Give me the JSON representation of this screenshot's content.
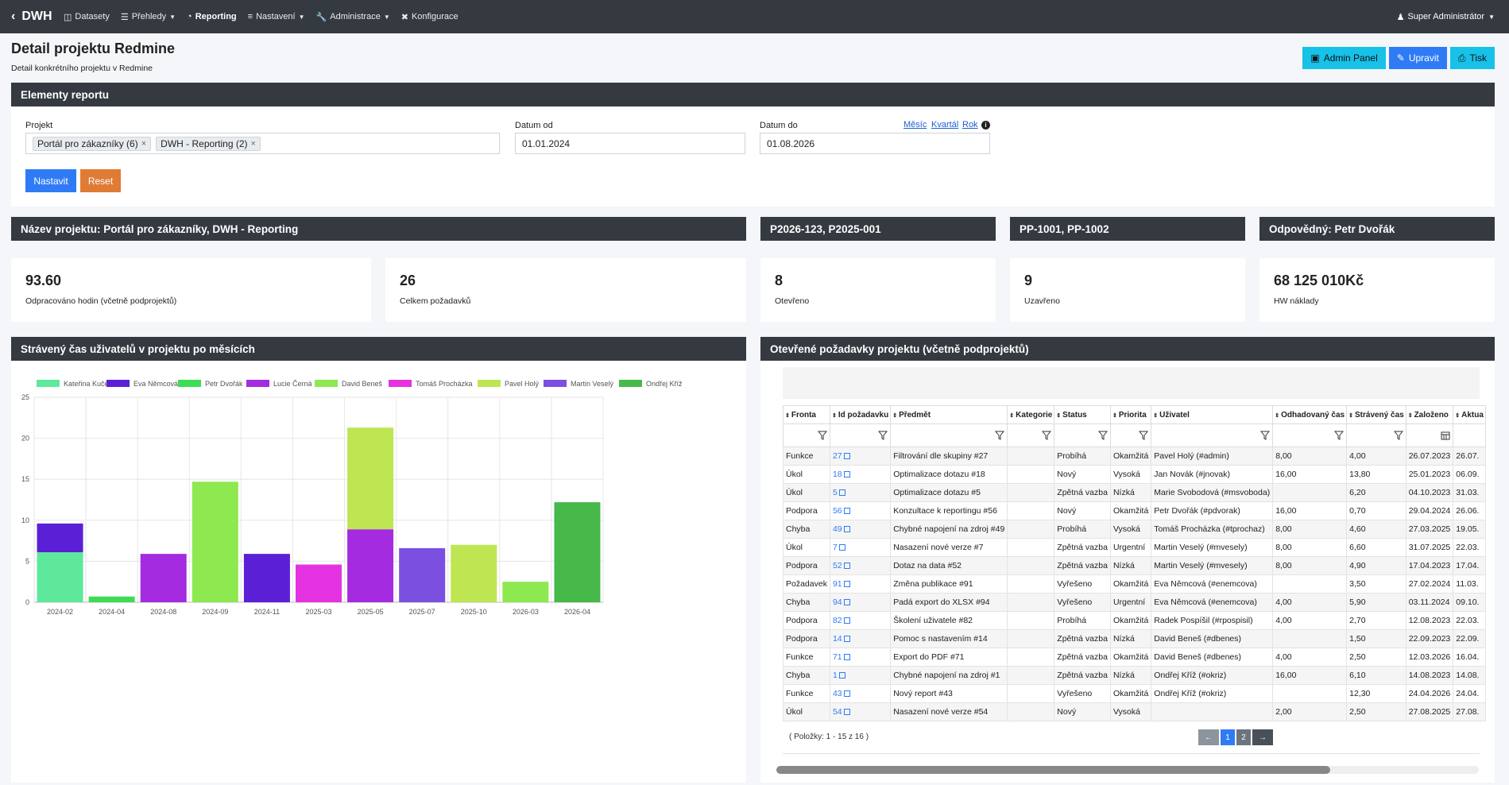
{
  "nav": {
    "brand": "DWH",
    "items": [
      {
        "label": "Datasety",
        "icon": "database-icon",
        "caret": false,
        "active": false
      },
      {
        "label": "Přehledy",
        "icon": "list-icon",
        "caret": true,
        "active": false
      },
      {
        "label": "Reporting",
        "icon": "pie-chart-icon",
        "caret": false,
        "active": true
      },
      {
        "label": "Nastavení",
        "icon": "sliders-icon",
        "caret": true,
        "active": false
      },
      {
        "label": "Administrace",
        "icon": "wrench-icon",
        "caret": true,
        "active": false
      },
      {
        "label": "Konfigurace",
        "icon": "tools-icon",
        "caret": false,
        "active": false
      }
    ],
    "user": "Super Administrátor"
  },
  "header": {
    "title": "Detail projektu Redmine",
    "subtitle": "Detail konkrétního projektu v Redmine",
    "buttons": {
      "admin": "Admin Panel",
      "edit": "Upravit",
      "print": "Tisk"
    }
  },
  "filters": {
    "section_title": "Elementy reportu",
    "project_label": "Projekt",
    "project_tags": [
      "Portál pro zákazníky (6)",
      "DWH - Reporting (2)"
    ],
    "date_from_label": "Datum od",
    "date_from": "01.01.2024",
    "date_to_label": "Datum do",
    "date_to": "01.08.2026",
    "quick_links": [
      "Měsíc",
      "Kvartál",
      "Rok"
    ],
    "set_button": "Nastavit",
    "reset_button": "Reset"
  },
  "info_bars": {
    "project_name": "Název projektu: Portál pro zákazníky, DWH - Reporting",
    "codes1": "P2026-123, P2025-001",
    "codes2": "PP-1001, PP-1002",
    "responsible": "Odpovědný: Petr Dvořák"
  },
  "stats": [
    {
      "value": "93.60",
      "label": "Odpracováno hodin (včetně podprojektů)"
    },
    {
      "value": "26",
      "label": "Celkem požadavků"
    },
    {
      "value": "8",
      "label": "Otevřeno"
    },
    {
      "value": "9",
      "label": "Uzavřeno"
    },
    {
      "value": "68 125 010Kč",
      "label": "HW náklady"
    }
  ],
  "chart_section_title": "Strávený čas uživatelů v projektu po měsících",
  "chart_data": {
    "type": "bar",
    "stacked": true,
    "categories": [
      "2024-02",
      "2024-04",
      "2024-08",
      "2024-09",
      "2024-11",
      "2025-03",
      "2025-05",
      "2025-07",
      "2025-10",
      "2026-03",
      "2026-04"
    ],
    "ylim": [
      0,
      25
    ],
    "yticks": [
      0,
      5,
      10,
      15,
      20,
      25
    ],
    "grid": true,
    "legend": "top",
    "series": [
      {
        "name": "Kateřina Kučerová",
        "color": "#5ee89b",
        "values": [
          6.1,
          0,
          0,
          0,
          0,
          0,
          0,
          0,
          0,
          0,
          0
        ]
      },
      {
        "name": "Eva Němcová",
        "color": "#5b1fd6",
        "values": [
          3.5,
          0,
          0,
          0,
          5.9,
          0,
          0,
          0,
          0,
          0,
          0
        ]
      },
      {
        "name": "Petr Dvořák",
        "color": "#3ddc55",
        "values": [
          0,
          0.7,
          0,
          0,
          0,
          0,
          0,
          0,
          0,
          0,
          0
        ]
      },
      {
        "name": "Lucie Černá",
        "color": "#a52be0",
        "values": [
          0,
          0,
          5.9,
          0,
          0,
          0,
          8.9,
          0,
          0,
          0,
          0
        ]
      },
      {
        "name": "David Beneš",
        "color": "#8ee84f",
        "values": [
          0,
          0,
          0,
          14.7,
          0,
          0,
          0,
          0,
          0,
          2.5,
          0
        ]
      },
      {
        "name": "Tomáš Procházka",
        "color": "#e532e0",
        "values": [
          0,
          0,
          0,
          0,
          0,
          4.6,
          0,
          0,
          0,
          0,
          0
        ]
      },
      {
        "name": "Pavel Holý",
        "color": "#bde652",
        "values": [
          0,
          0,
          0,
          0,
          0,
          0,
          12.4,
          0,
          7.0,
          0,
          0
        ]
      },
      {
        "name": "Martin Veselý",
        "color": "#7b4fe0",
        "values": [
          0,
          0,
          0,
          0,
          0,
          0,
          0,
          6.6,
          0,
          0,
          0
        ]
      },
      {
        "name": "Ondřej Kříž",
        "color": "#47b94a",
        "values": [
          0,
          0,
          0,
          0,
          0,
          0,
          0,
          0,
          0,
          0,
          12.2
        ]
      }
    ]
  },
  "table": {
    "section_title": "Otevřené požadavky projektu (včetně podprojektů)",
    "columns": [
      "Fronta",
      "Id požadavku",
      "Předmět",
      "Kategorie",
      "Status",
      "Priorita",
      "Uživatel",
      "Odhadovaný čas",
      "Strávený čas",
      "Založeno",
      "Aktua"
    ],
    "rows": [
      [
        "Funkce",
        "27",
        "Filtrování dle skupiny #27",
        "",
        "Probíhá",
        "Okamžitá",
        "Pavel Holý (#admin)",
        "8,00",
        "4,00",
        "26.07.2023",
        "26.07."
      ],
      [
        "Úkol",
        "18",
        "Optimalizace dotazu #18",
        "",
        "Nový",
        "Vysoká",
        "Jan Novák (#jnovak)",
        "16,00",
        "13,80",
        "25.01.2023",
        "06.09."
      ],
      [
        "Úkol",
        "5",
        "Optimalizace dotazu #5",
        "",
        "Zpětná vazba",
        "Nízká",
        "Marie Svobodová (#msvoboda)",
        "",
        "6,20",
        "04.10.2023",
        "31.03."
      ],
      [
        "Podpora",
        "56",
        "Konzultace k reportingu #56",
        "",
        "Nový",
        "Okamžitá",
        "Petr Dvořák (#pdvorak)",
        "16,00",
        "0,70",
        "29.04.2024",
        "26.06."
      ],
      [
        "Chyba",
        "49",
        "Chybné napojení na zdroj #49",
        "",
        "Probíhá",
        "Vysoká",
        "Tomáš Procházka (#tprochaz)",
        "8,00",
        "4,60",
        "27.03.2025",
        "19.05."
      ],
      [
        "Úkol",
        "7",
        "Nasazení nové verze #7",
        "",
        "Zpětná vazba",
        "Urgentní",
        "Martin Veselý (#mvesely)",
        "8,00",
        "6,60",
        "31.07.2025",
        "22.03."
      ],
      [
        "Podpora",
        "52",
        "Dotaz na data #52",
        "",
        "Zpětná vazba",
        "Nízká",
        "Martin Veselý (#mvesely)",
        "8,00",
        "4,90",
        "17.04.2023",
        "17.04."
      ],
      [
        "Požadavek",
        "91",
        "Změna publikace #91",
        "",
        "Vyřešeno",
        "Okamžitá",
        "Eva Němcová (#enemcova)",
        "",
        "3,50",
        "27.02.2024",
        "11.03."
      ],
      [
        "Chyba",
        "94",
        "Padá export do XLSX #94",
        "",
        "Vyřešeno",
        "Urgentní",
        "Eva Němcová (#enemcova)",
        "4,00",
        "5,90",
        "03.11.2024",
        "09.10."
      ],
      [
        "Podpora",
        "82",
        "Školení uživatele #82",
        "",
        "Probíhá",
        "Okamžitá",
        "Radek Pospíšil (#rpospisil)",
        "4,00",
        "2,70",
        "12.08.2023",
        "22.03."
      ],
      [
        "Podpora",
        "14",
        "Pomoc s nastavením #14",
        "",
        "Zpětná vazba",
        "Nízká",
        "David Beneš (#dbenes)",
        "",
        "1,50",
        "22.09.2023",
        "22.09."
      ],
      [
        "Funkce",
        "71",
        "Export do PDF #71",
        "",
        "Zpětná vazba",
        "Okamžitá",
        "David Beneš (#dbenes)",
        "4,00",
        "2,50",
        "12.03.2026",
        "16.04."
      ],
      [
        "Chyba",
        "1",
        "Chybné napojení na zdroj #1",
        "",
        "Zpětná vazba",
        "Nízká",
        "Ondřej Kříž (#okriz)",
        "16,00",
        "6,10",
        "14.08.2023",
        "14.08."
      ],
      [
        "Funkce",
        "43",
        "Nový report #43",
        "",
        "Vyřešeno",
        "Okamžitá",
        "Ondřej Kříž (#okriz)",
        "",
        "12,30",
        "24.04.2026",
        "24.04."
      ],
      [
        "Úkol",
        "54",
        "Nasazení nové verze #54",
        "",
        "Nový",
        "Vysoká",
        "",
        "2,00",
        "2,50",
        "27.08.2025",
        "27.08."
      ]
    ],
    "pagination_info": "( Položky: 1 - 15 z 16 )",
    "pages": [
      "1",
      "2"
    ],
    "current_page": "1"
  }
}
